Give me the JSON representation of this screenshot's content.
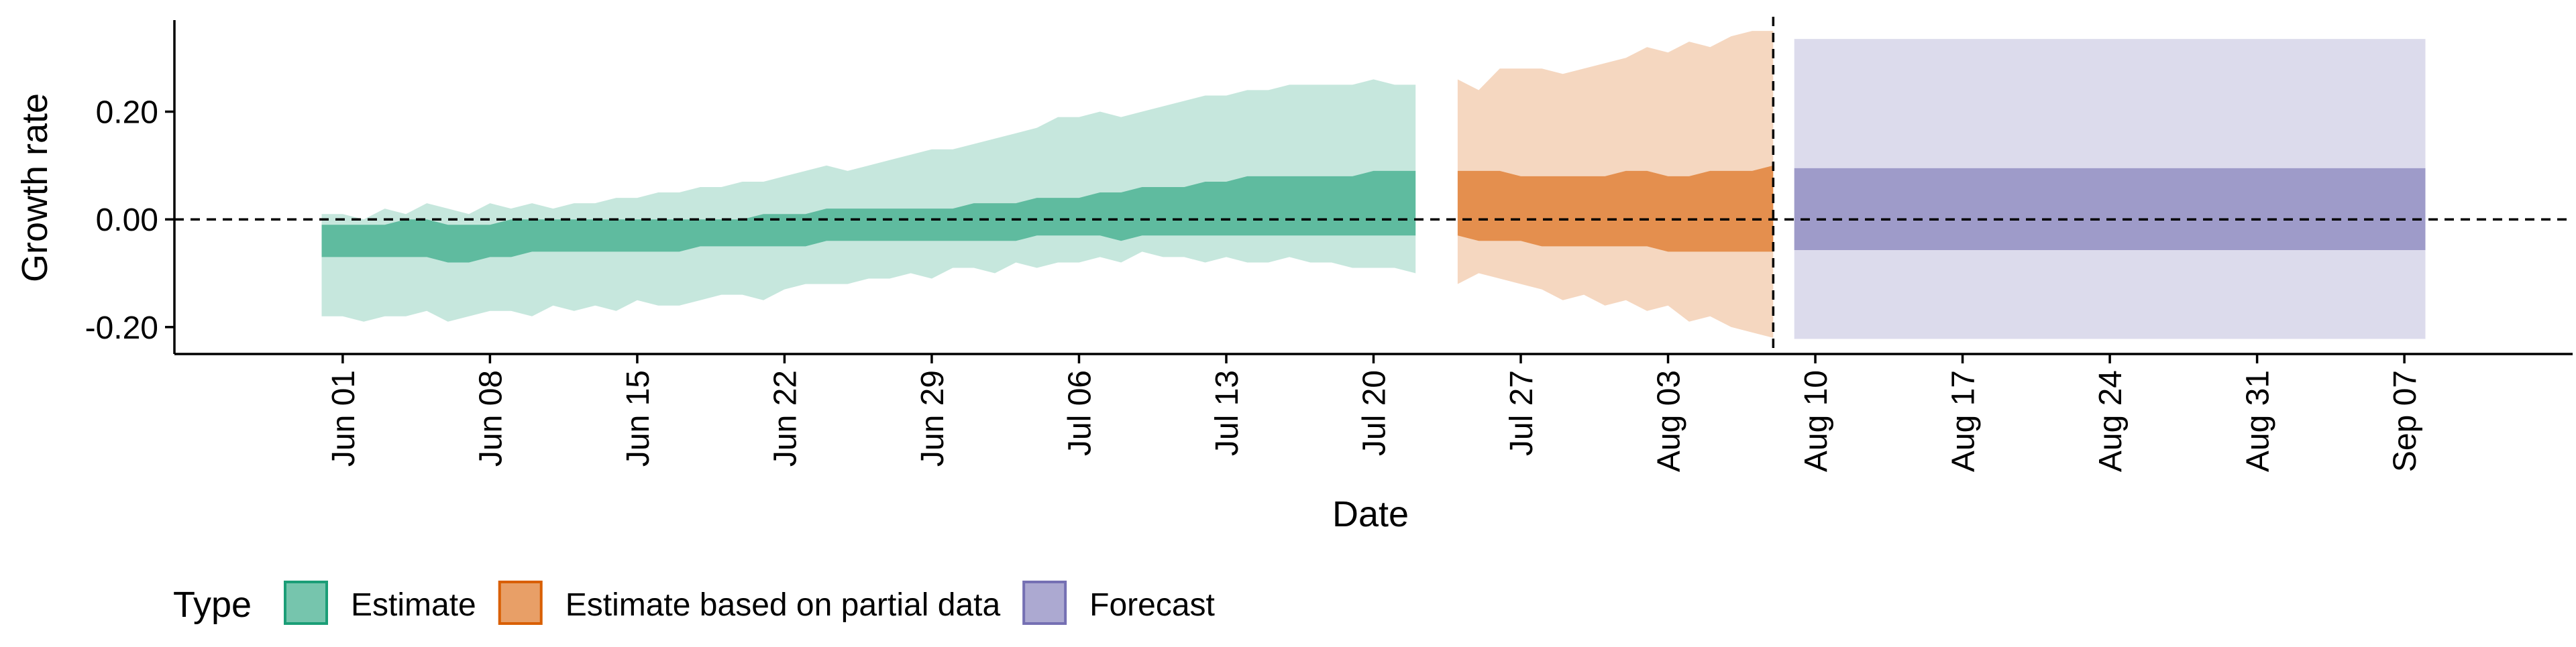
{
  "chart_data": {
    "type": "area",
    "title": "",
    "xlabel": "Date",
    "ylabel": "Growth rate",
    "ylim": [
      -0.25,
      0.37
    ],
    "xlim": [
      "2024-05-24",
      "2024-09-15"
    ],
    "yticks": [
      -0.2,
      0.0,
      0.2
    ],
    "ytick_labels": [
      "-0.20",
      "0.00",
      "0.20"
    ],
    "xticks": [
      "2024-06-01",
      "2024-06-08",
      "2024-06-15",
      "2024-06-22",
      "2024-06-29",
      "2024-07-06",
      "2024-07-13",
      "2024-07-20",
      "2024-07-27",
      "2024-08-03",
      "2024-08-10",
      "2024-08-17",
      "2024-08-24",
      "2024-08-31",
      "2024-09-07"
    ],
    "xtick_labels": [
      "Jun 01",
      "Jun 08",
      "Jun 15",
      "Jun 22",
      "Jun 29",
      "Jul 06",
      "Jul 13",
      "Jul 20",
      "Jul 27",
      "Aug 03",
      "Aug 10",
      "Aug 17",
      "Aug 24",
      "Aug 31",
      "Sep 07"
    ],
    "reference_lines": [
      {
        "axis": "y",
        "value": 0.0,
        "style": "dashed"
      },
      {
        "axis": "x",
        "value": "2024-08-08",
        "style": "dashed"
      }
    ],
    "grid": false,
    "legend": {
      "title": "Type",
      "position": "bottom-left",
      "entries": [
        {
          "label": "Estimate",
          "color": "#1b9e77"
        },
        {
          "label": "Estimate based on partial data",
          "color": "#d95f02"
        },
        {
          "label": "Forecast",
          "color": "#7570b3"
        }
      ]
    },
    "series": [
      {
        "name": "Estimate",
        "color": "#1b9e77",
        "x": [
          "2024-05-31",
          "2024-06-01",
          "2024-06-02",
          "2024-06-03",
          "2024-06-04",
          "2024-06-05",
          "2024-06-06",
          "2024-06-07",
          "2024-06-08",
          "2024-06-09",
          "2024-06-10",
          "2024-06-11",
          "2024-06-12",
          "2024-06-13",
          "2024-06-14",
          "2024-06-15",
          "2024-06-16",
          "2024-06-17",
          "2024-06-18",
          "2024-06-19",
          "2024-06-20",
          "2024-06-21",
          "2024-06-22",
          "2024-06-23",
          "2024-06-24",
          "2024-06-25",
          "2024-06-26",
          "2024-06-27",
          "2024-06-28",
          "2024-06-29",
          "2024-06-30",
          "2024-07-01",
          "2024-07-02",
          "2024-07-03",
          "2024-07-04",
          "2024-07-05",
          "2024-07-06",
          "2024-07-07",
          "2024-07-08",
          "2024-07-09",
          "2024-07-10",
          "2024-07-11",
          "2024-07-12",
          "2024-07-13",
          "2024-07-14",
          "2024-07-15",
          "2024-07-16",
          "2024-07-17",
          "2024-07-18",
          "2024-07-19",
          "2024-07-20",
          "2024-07-21",
          "2024-07-22"
        ],
        "outer_upper": [
          0.01,
          0.01,
          0.0,
          0.02,
          0.01,
          0.03,
          0.02,
          0.01,
          0.03,
          0.02,
          0.03,
          0.02,
          0.03,
          0.03,
          0.04,
          0.04,
          0.05,
          0.05,
          0.06,
          0.06,
          0.07,
          0.07,
          0.08,
          0.09,
          0.1,
          0.09,
          0.1,
          0.11,
          0.12,
          0.13,
          0.13,
          0.14,
          0.15,
          0.16,
          0.17,
          0.19,
          0.19,
          0.2,
          0.19,
          0.2,
          0.21,
          0.22,
          0.23,
          0.23,
          0.24,
          0.24,
          0.25,
          0.25,
          0.25,
          0.25,
          0.26,
          0.25,
          0.25
        ],
        "inner_upper": [
          -0.01,
          -0.01,
          -0.01,
          -0.01,
          0.0,
          0.0,
          -0.01,
          -0.01,
          -0.01,
          0.0,
          0.0,
          0.0,
          0.0,
          0.0,
          0.0,
          0.0,
          0.0,
          0.0,
          0.0,
          0.0,
          0.0,
          0.01,
          0.01,
          0.01,
          0.02,
          0.02,
          0.02,
          0.02,
          0.02,
          0.02,
          0.02,
          0.03,
          0.03,
          0.03,
          0.04,
          0.04,
          0.04,
          0.05,
          0.05,
          0.06,
          0.06,
          0.06,
          0.07,
          0.07,
          0.08,
          0.08,
          0.08,
          0.08,
          0.08,
          0.08,
          0.09,
          0.09,
          0.09
        ],
        "inner_lower": [
          -0.07,
          -0.07,
          -0.07,
          -0.07,
          -0.07,
          -0.07,
          -0.08,
          -0.08,
          -0.07,
          -0.07,
          -0.06,
          -0.06,
          -0.06,
          -0.06,
          -0.06,
          -0.06,
          -0.06,
          -0.06,
          -0.05,
          -0.05,
          -0.05,
          -0.05,
          -0.05,
          -0.05,
          -0.04,
          -0.04,
          -0.04,
          -0.04,
          -0.04,
          -0.04,
          -0.04,
          -0.04,
          -0.04,
          -0.04,
          -0.03,
          -0.03,
          -0.03,
          -0.03,
          -0.04,
          -0.03,
          -0.03,
          -0.03,
          -0.03,
          -0.03,
          -0.03,
          -0.03,
          -0.03,
          -0.03,
          -0.03,
          -0.03,
          -0.03,
          -0.03,
          -0.03
        ],
        "outer_lower": [
          -0.18,
          -0.18,
          -0.19,
          -0.18,
          -0.18,
          -0.17,
          -0.19,
          -0.18,
          -0.17,
          -0.17,
          -0.18,
          -0.16,
          -0.17,
          -0.16,
          -0.17,
          -0.15,
          -0.16,
          -0.16,
          -0.15,
          -0.14,
          -0.14,
          -0.15,
          -0.13,
          -0.12,
          -0.12,
          -0.12,
          -0.11,
          -0.11,
          -0.1,
          -0.11,
          -0.09,
          -0.09,
          -0.1,
          -0.08,
          -0.09,
          -0.08,
          -0.08,
          -0.07,
          -0.08,
          -0.06,
          -0.07,
          -0.07,
          -0.08,
          -0.07,
          -0.08,
          -0.08,
          -0.07,
          -0.08,
          -0.08,
          -0.09,
          -0.09,
          -0.09,
          -0.1
        ]
      },
      {
        "name": "Estimate based on partial data",
        "color": "#d95f02",
        "x": [
          "2024-07-24",
          "2024-07-25",
          "2024-07-26",
          "2024-07-27",
          "2024-07-28",
          "2024-07-29",
          "2024-07-30",
          "2024-07-31",
          "2024-08-01",
          "2024-08-02",
          "2024-08-03",
          "2024-08-04",
          "2024-08-05",
          "2024-08-06",
          "2024-08-07",
          "2024-08-08"
        ],
        "outer_upper": [
          0.26,
          0.24,
          0.28,
          0.28,
          0.28,
          0.27,
          0.28,
          0.29,
          0.3,
          0.32,
          0.31,
          0.33,
          0.32,
          0.34,
          0.35,
          0.35
        ],
        "inner_upper": [
          0.09,
          0.09,
          0.09,
          0.08,
          0.08,
          0.08,
          0.08,
          0.08,
          0.09,
          0.09,
          0.08,
          0.08,
          0.09,
          0.09,
          0.09,
          0.1
        ],
        "inner_lower": [
          -0.03,
          -0.04,
          -0.04,
          -0.04,
          -0.05,
          -0.05,
          -0.05,
          -0.05,
          -0.05,
          -0.05,
          -0.06,
          -0.06,
          -0.06,
          -0.06,
          -0.06,
          -0.06
        ],
        "outer_lower": [
          -0.12,
          -0.1,
          -0.11,
          -0.12,
          -0.13,
          -0.15,
          -0.14,
          -0.16,
          -0.15,
          -0.17,
          -0.16,
          -0.19,
          -0.18,
          -0.2,
          -0.21,
          -0.22
        ]
      },
      {
        "name": "Forecast",
        "color": "#7570b3",
        "x": [
          "2024-08-09",
          "2024-09-08"
        ],
        "outer_upper": [
          0.335,
          0.335
        ],
        "inner_upper": [
          0.095,
          0.095
        ],
        "inner_lower": [
          -0.057,
          -0.057
        ],
        "outer_lower": [
          -0.222,
          -0.222
        ]
      }
    ]
  }
}
